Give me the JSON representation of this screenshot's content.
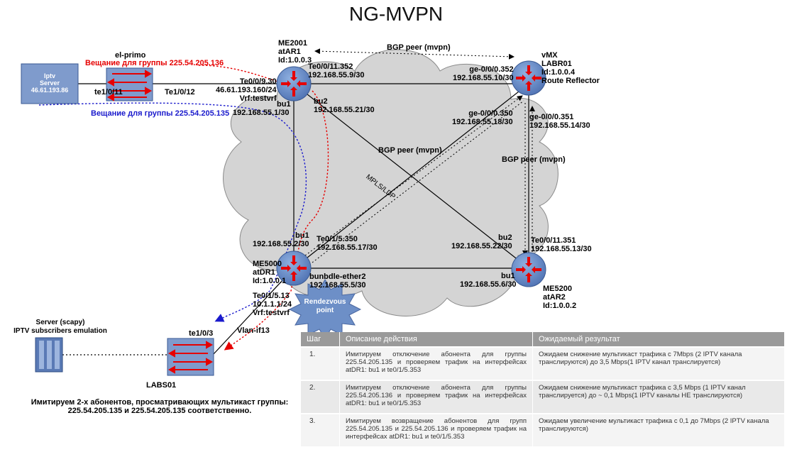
{
  "title": "NG-MVPN",
  "nodes": {
    "me2001": {
      "lines": [
        "ME2001",
        "atAR1",
        "Id:1.0.0.3"
      ]
    },
    "vmx": {
      "lines": [
        "vMX",
        "LABR01",
        "Id:1.0.0.4",
        "Route Reflector"
      ]
    },
    "me5000": {
      "lines": [
        "ME5000",
        "atDR1",
        "Id:1.0.0.1"
      ]
    },
    "me5200": {
      "lines": [
        "ME5200",
        "atAR2",
        "Id:1.0.0.2"
      ]
    },
    "elprimo": "el-primo",
    "iptv_server": {
      "lines": [
        "Iptv",
        "Server",
        "46.61.193.86"
      ]
    },
    "labs01": "LABS01",
    "server_scapy": {
      "lines": [
        "Server (scapy)",
        "IPTV subscribers emulation"
      ]
    },
    "rendezvous": {
      "lines": [
        "Rendezvous",
        "point"
      ]
    }
  },
  "labels": {
    "bgp_top": "BGP peer (mvpn)",
    "bgp_mid": "BGP peer (mvpn)",
    "bgp_right": "BGP peer (mvpn)",
    "mpls": "MPLS/LDP",
    "me2001_te0011352": "Te0/0/11.352",
    "me2001_te0011352_ip": "192.168.55.9/30",
    "vmx_ge352": "ge-0/0/0.352",
    "vmx_ge352_ip": "192.168.55.10/30",
    "me2001_te0930": "Te0/0/9.30",
    "me2001_te0930_ip": "46.61.193.160/24",
    "me2001_vrf": "Vrf:testvrf",
    "me2001_bu1": "bu1",
    "me2001_bu1_ip": "192.168.55.1/30",
    "me2001_bu2": "bu2",
    "me2001_bu2_ip": "192.168.55.21/30",
    "vmx_ge350": "ge-0/0/0.350",
    "vmx_ge350_ip": "192.168.55.18/30",
    "vmx_ge351": "ge-0/0/0.351",
    "vmx_ge351_ip": "192.168.55.14/30",
    "me5000_bu1": "bu1",
    "me5000_bu1_ip": "192.168.55.2/30",
    "me5000_te5350": "Te0/1/5.350",
    "me5000_te5350_ip": "192.168.55.17/30",
    "me5000_bundle": "bunbdle-ether2",
    "me5000_bundle_ip": "192.168.55.5/30",
    "me5000_te513": "Te0/1/5.13",
    "me5000_te513_ip": "10.1.1.1/24",
    "me5000_vrf": "Vrf:testvrf",
    "me5200_bu2": "bu2",
    "me5200_bu2_ip": "192.168.55.22/30",
    "me5200_te351": "Te0/0/11.351",
    "me5200_te351_ip": "192.168.55.13/30",
    "me5200_bu1": "bu1",
    "me5200_bu1_ip": "192.168.55.6/30",
    "elprimo_te11": "te1/0/11",
    "elprimo_te12": "Te1/0/12",
    "labs01_te3": "te1/0/3",
    "vlan": "Vlan-if13",
    "group136": "Вещание для группы 225.54.205.136",
    "group135": "Вещание для группы 225.54.205.135",
    "footnote_1": "Имитируем 2-х абонентов, просматривающих мультикаст группы:",
    "footnote_2": "225.54.205.135 и 225.54.205.135 соответственно."
  },
  "table": {
    "headers": [
      "Шаг",
      "Описание действия",
      "Ожидаемый результат"
    ],
    "rows": [
      {
        "step": "1.",
        "description": "Имитируем отключение абонента для группы 225.54.205.135 и проверяем трафик на интерфейсах atDR1: bu1 и te0/1/5.353",
        "result": "Ожидаем снижение мультикаст трафика с 7Mbps (2 IPTV канала транслируются) до 3,5 Mbps(1 IPTV канал транслируется)"
      },
      {
        "step": "2.",
        "description": "Имитируем отключение абонента для группы 225.54.205.136 и проверяем трафик на интерфейсах atDR1: bu1 и te0/1/5.353",
        "result": "Ожидаем снижение мультикаст трафика с 3,5 Mbps (1 IPTV канал транслируется) до ~ 0,1 Mbps(1 IPTV каналы НЕ транслируются)"
      },
      {
        "step": "3.",
        "description": "Имитируем возвращение абонентов для групп 225.54.205.135 и 225.54.205.136 и проверяем трафик на интерфейсах atDR1: bu1 и te0/1/5.353",
        "result": "Ожидаем увеличение мультикаст трафика с 0,1 до 7Mbps (2 IPTV канала транслируются)"
      }
    ]
  },
  "colors": {
    "router": "#6d8fc7",
    "switch": "#7f9bcc",
    "cloud": "#d4d4d4",
    "arrow": "#e60000",
    "red_path": "#e60000",
    "blue_path": "#1a1acc"
  }
}
